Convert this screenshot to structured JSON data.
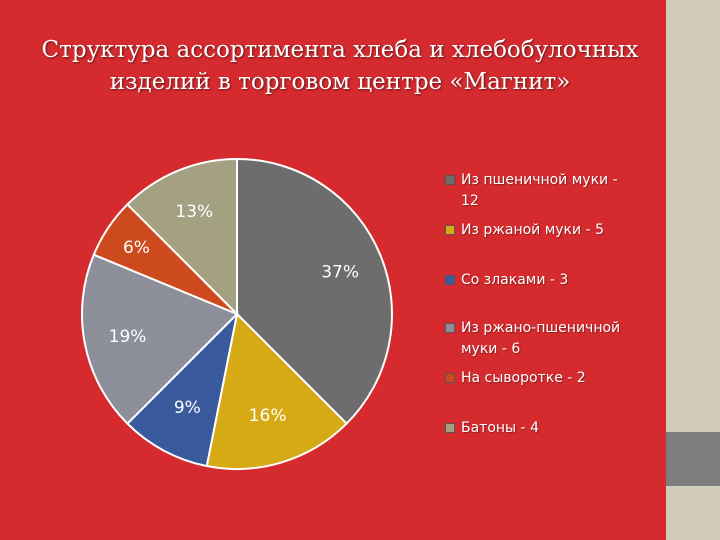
{
  "title": {
    "line1": "Структура ассортимента хлеба и хлебобулочных",
    "line2": "изделий в торговом центре «Магнит»"
  },
  "chart_data": {
    "type": "pie",
    "slices": [
      {
        "legend": "Из пшеничной муки - 12",
        "legend_line1": "Из пшеничной муки -",
        "legend_line2": "12",
        "value": 12,
        "percent_label": "37%",
        "color": "#6d6d6d"
      },
      {
        "legend": "Из ржаной муки - 5",
        "legend_line1": "Из ржаной муки - 5",
        "legend_line2": "",
        "value": 5,
        "percent_label": "16%",
        "color": "#d6aa14"
      },
      {
        "legend": "Со злаками - 3",
        "legend_line1": "Со злаками - 3",
        "legend_line2": "",
        "value": 3,
        "percent_label": "9%",
        "color": "#3a5a9e"
      },
      {
        "legend": "Из ржано-пшеничной муки - 6",
        "legend_line1": "Из ржано-пшеничной",
        "legend_line2": "муки - 6",
        "value": 6,
        "percent_label": "19%",
        "color": "#8d8f9a"
      },
      {
        "legend": "На сыворотке - 2",
        "legend_line1": "На сыворотке - 2",
        "legend_line2": "",
        "value": 2,
        "percent_label": "6%",
        "color": "#cc4a1e"
      },
      {
        "legend": "Батоны - 4",
        "legend_line1": "Батоны - 4",
        "legend_line2": "",
        "value": 4,
        "percent_label": "13%",
        "color": "#a3a182"
      }
    ],
    "legend_position": "right"
  }
}
